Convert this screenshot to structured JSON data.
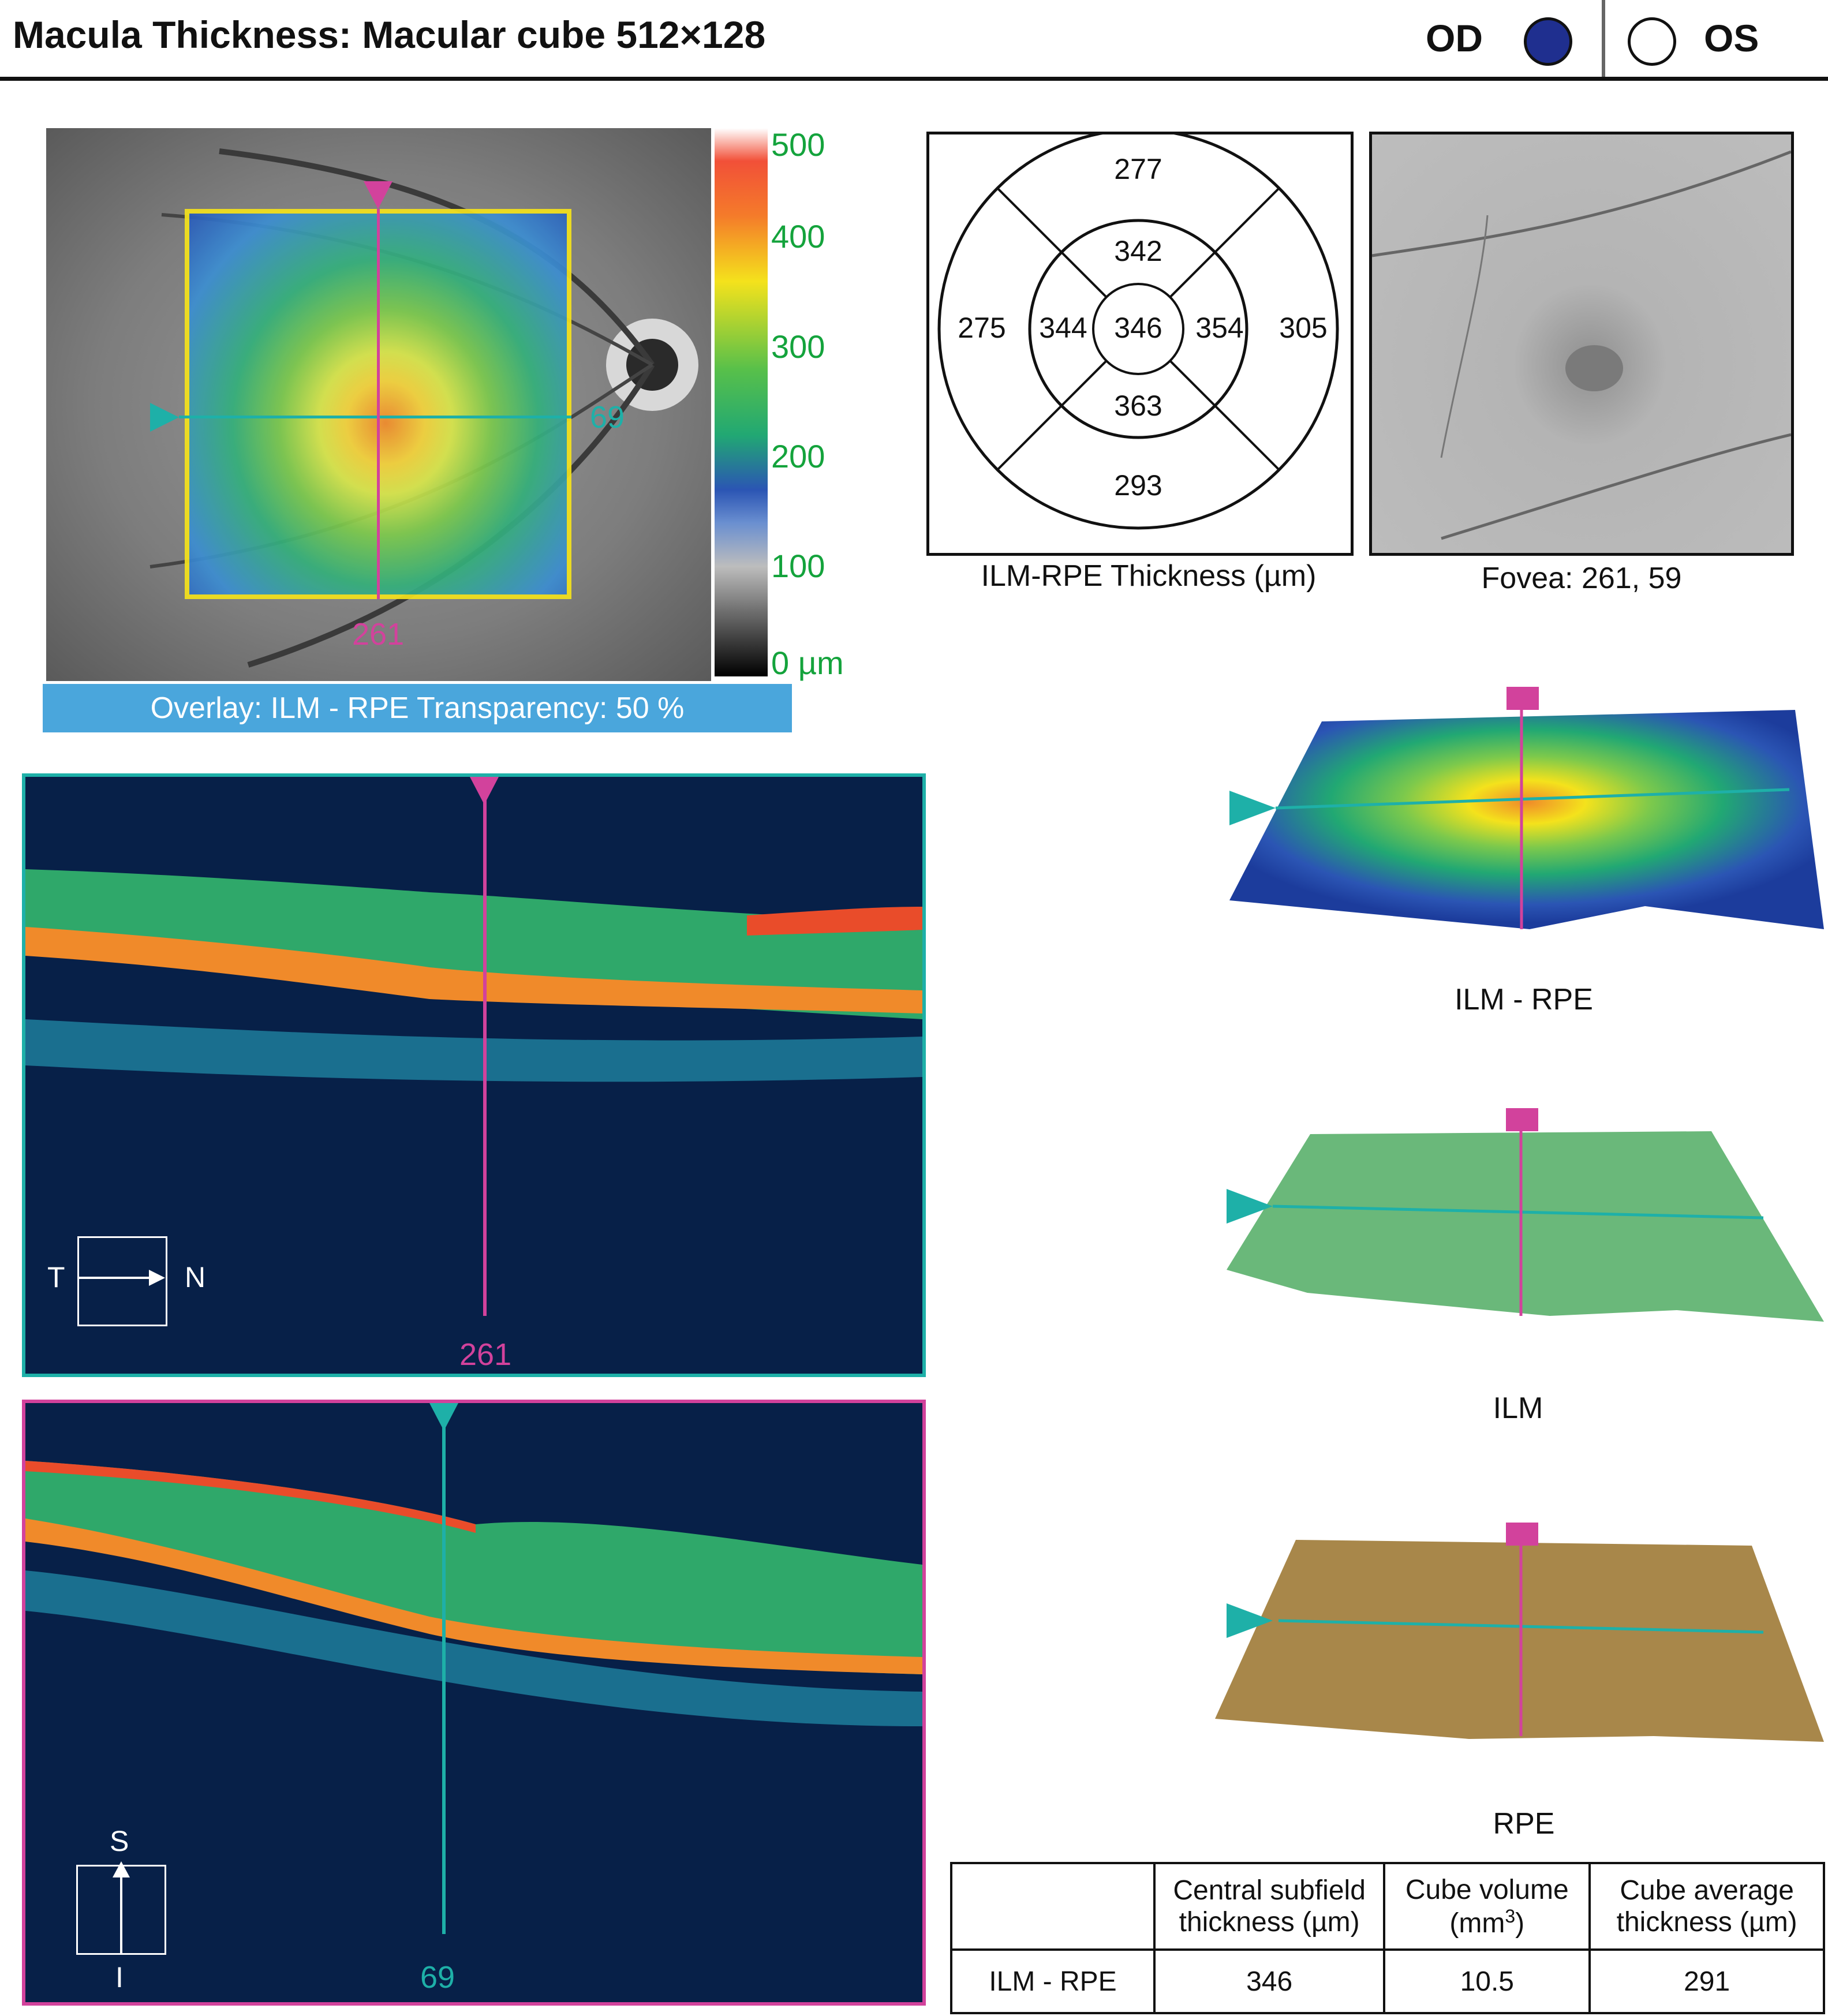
{
  "header": {
    "title": "Macula Thickness: Macular cube 512×128",
    "od_label": "OD",
    "os_label": "OS",
    "selected_eye": "OD"
  },
  "fundus_map": {
    "vertical_marker": "261",
    "horizontal_marker": "69",
    "scale_labels": [
      "500",
      "400",
      "300",
      "200",
      "100",
      "0 µm"
    ],
    "overlay_label": "Overlay: ILM - RPE Transparency: 50 %"
  },
  "etdrs_grid": {
    "outer_superior": "277",
    "inner_superior": "342",
    "outer_temporal": "275",
    "inner_temporal": "344",
    "center": "346",
    "inner_nasal": "354",
    "outer_nasal": "305",
    "inner_inferior": "363",
    "outer_inferior": "293",
    "caption": "ILM-RPE Thickness (µm)"
  },
  "slo_image": {
    "caption": "Fovea: 261, 59"
  },
  "bscan_horizontal": {
    "marker": "261",
    "orientation_left": "T",
    "orientation_right": "N"
  },
  "bscan_vertical": {
    "marker": "69",
    "orientation_top": "S",
    "orientation_bottom": "I"
  },
  "surface_3d": [
    {
      "caption": "ILM - RPE"
    },
    {
      "caption": "ILM"
    },
    {
      "caption": "RPE"
    }
  ],
  "results_table": {
    "headers": [
      "",
      "Central subfield thickness (µm)",
      "Cube volume (mm3)",
      "Cube average thickness (µm)"
    ],
    "header_lines": {
      "c1a": "Central subfield",
      "c1b": "thickness (µm)",
      "c2a": "Cube volume",
      "c2b": "(mm",
      "c2sup": "3",
      "c2c": ")",
      "c3a": "Cube average",
      "c3b": "thickness (µm)"
    },
    "row": {
      "label": "ILM - RPE",
      "central_subfield": "346",
      "cube_volume": "10.5",
      "cube_average": "291"
    }
  },
  "colors": {
    "od_fill": "#1f2f8f",
    "magenta": "#d2429c",
    "cyan": "#1eb0a8",
    "overlay_bar": "#4aa6dc",
    "scale_text": "#14a33c"
  }
}
